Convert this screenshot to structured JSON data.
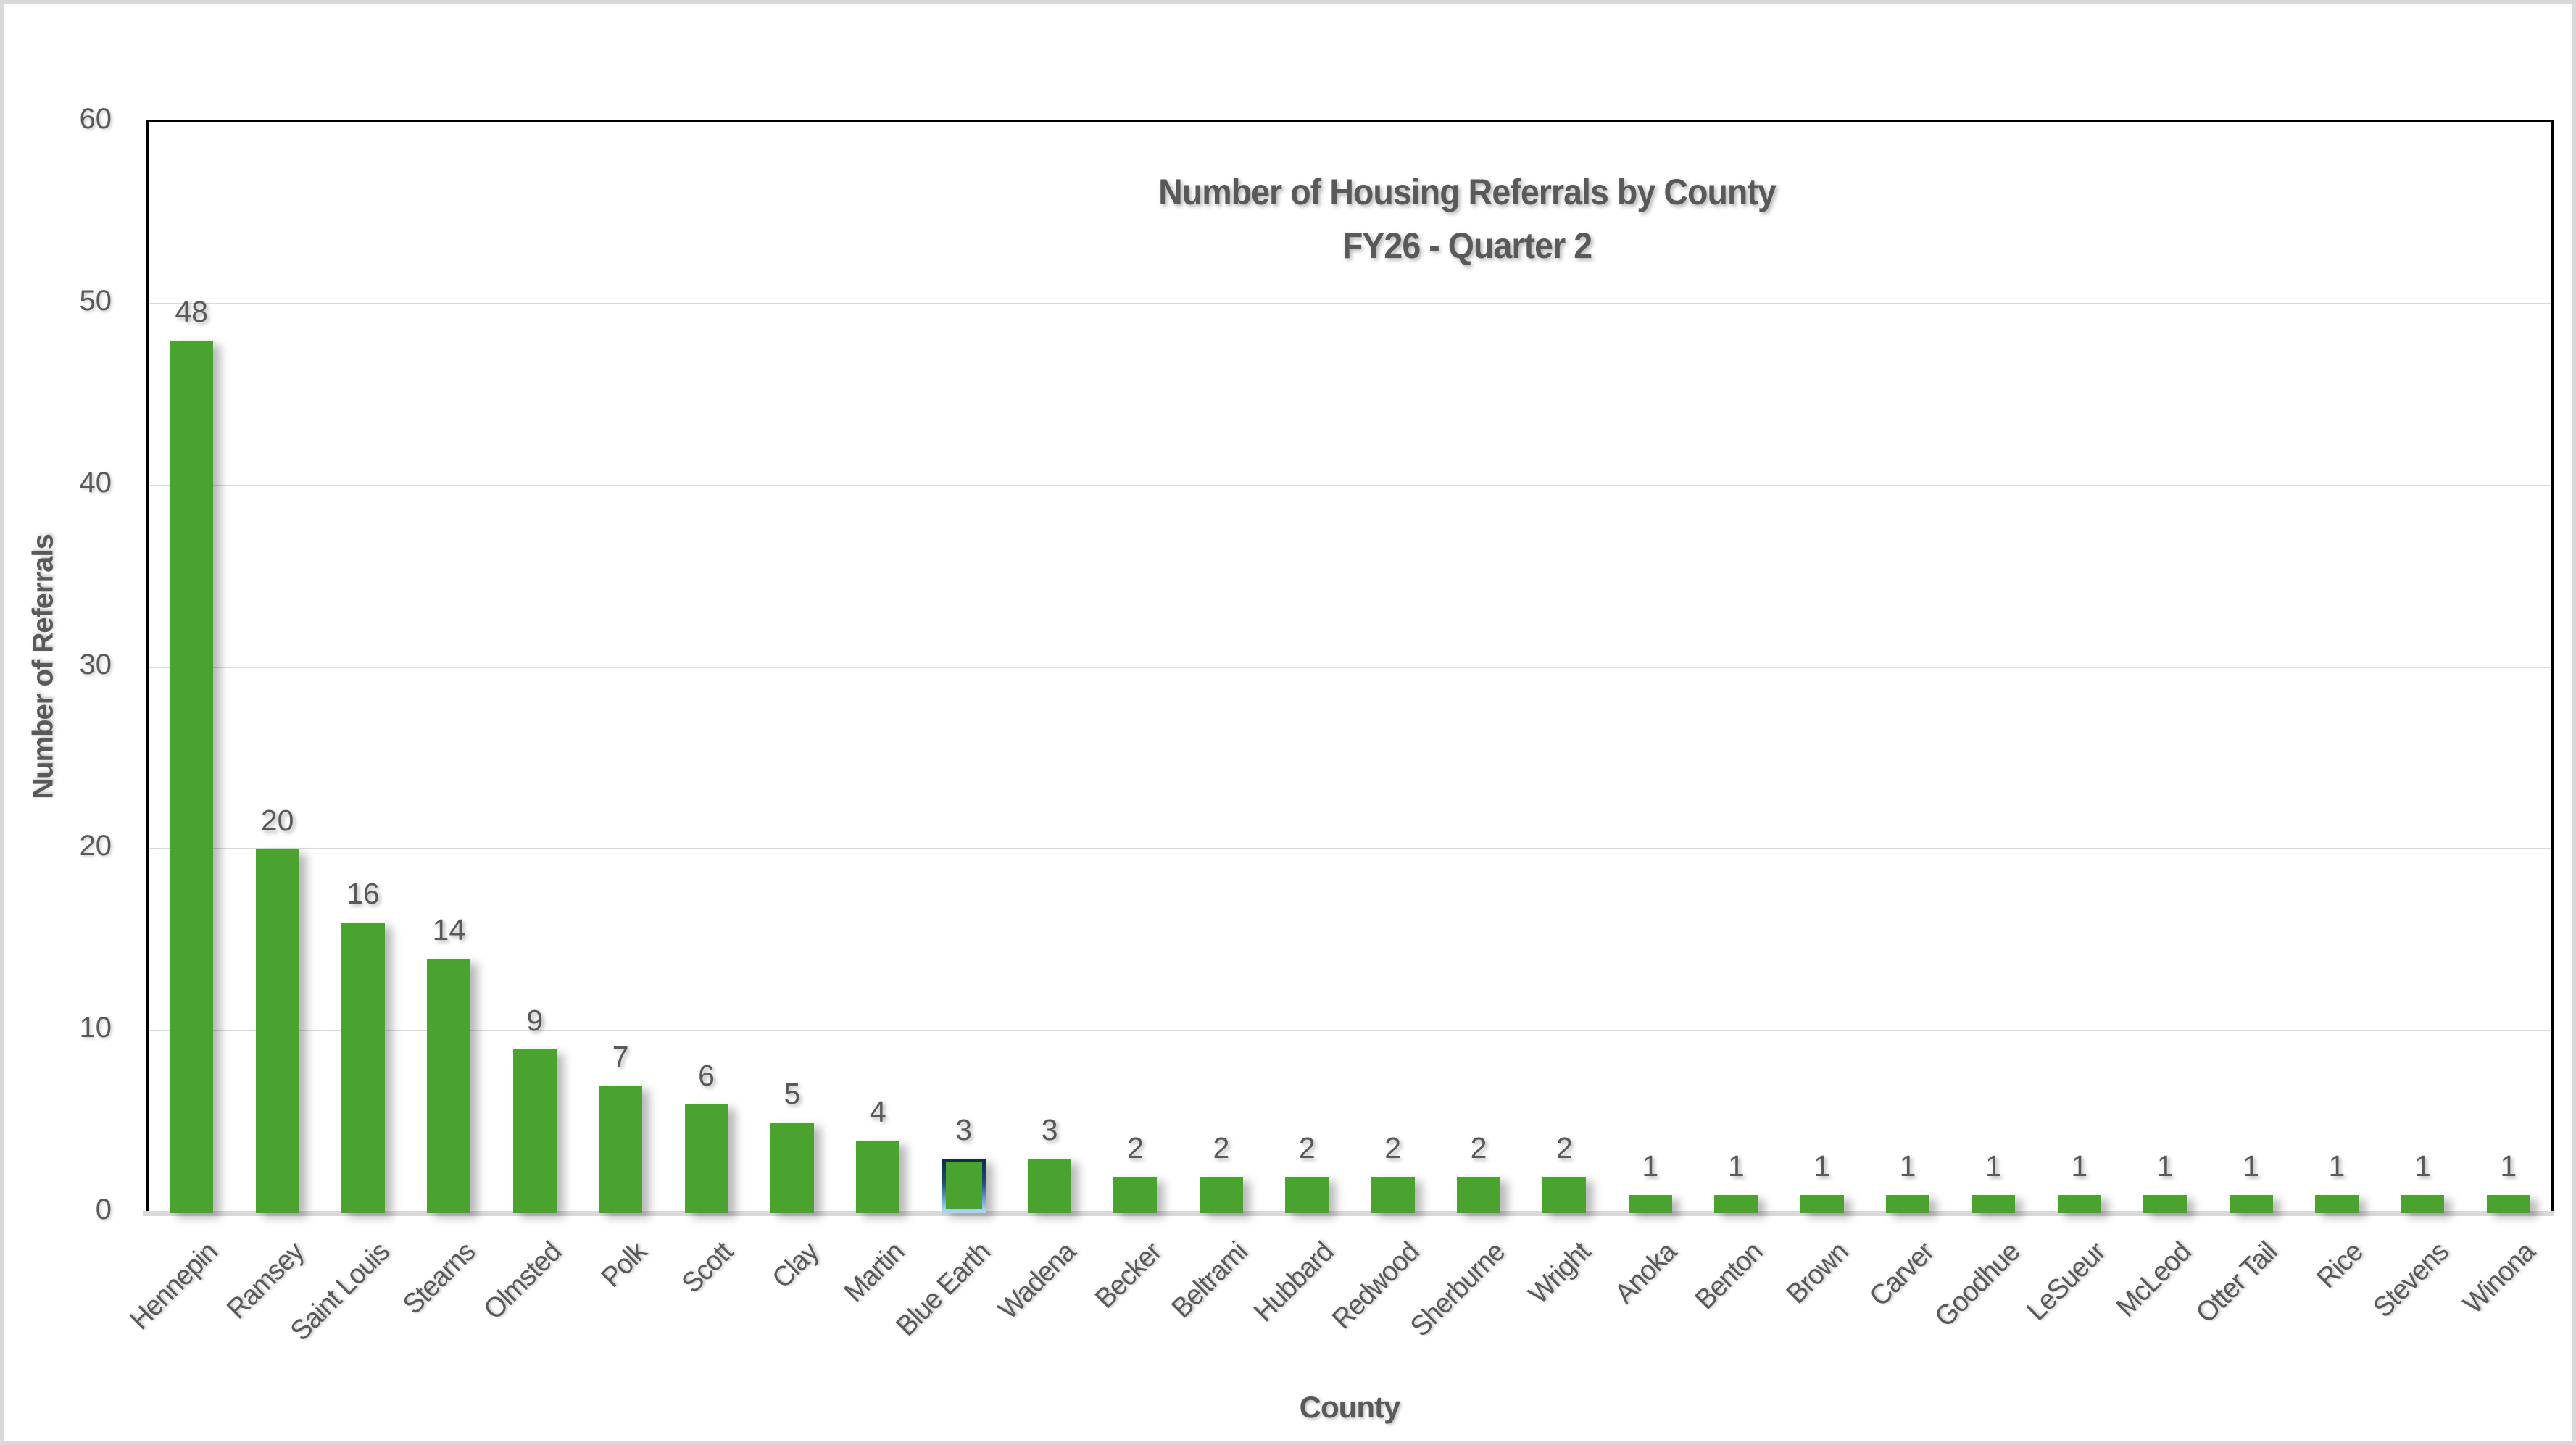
{
  "title": {
    "line1": "Number of Housing Referrals by County",
    "line2": "FY26 - Quarter 2"
  },
  "chart_data": {
    "type": "bar",
    "title": "Number of Housing Referrals by County FY26 - Quarter 2",
    "xlabel": "County",
    "ylabel": "Number of Referrals",
    "ylim": [
      0,
      60
    ],
    "yticks": [
      0,
      10,
      20,
      30,
      40,
      50,
      60
    ],
    "grid": true,
    "legend": "none",
    "categories": [
      "Hennepin",
      "Ramsey",
      "Saint Louis",
      "Stearns",
      "Olmsted",
      "Polk",
      "Scott",
      "Clay",
      "Martin",
      "Blue Earth",
      "Wadena",
      "Becker",
      "Beltrami",
      "Hubbard",
      "Redwood",
      "Sherburne",
      "Wright",
      "Anoka",
      "Benton",
      "Brown",
      "Carver",
      "Goodhue",
      "LeSueur",
      "McLeod",
      "Otter Tail",
      "Rice",
      "Stevens",
      "Winona"
    ],
    "values": [
      48,
      20,
      16,
      14,
      9,
      7,
      6,
      5,
      4,
      3,
      3,
      2,
      2,
      2,
      2,
      2,
      2,
      1,
      1,
      1,
      1,
      1,
      1,
      1,
      1,
      1,
      1,
      1
    ],
    "highlighted_category": "Blue Earth",
    "colors": {
      "bar_fill": "#4ba32f",
      "text": "#595959",
      "gridline": "#d9d9d9",
      "axis_baseline": "#d9d9d9",
      "plot_border": "#000000",
      "highlight_border_top": "#122c4d",
      "highlight_border_bottom": "#a8d4f0",
      "page_border": "#d9d9d9"
    }
  }
}
